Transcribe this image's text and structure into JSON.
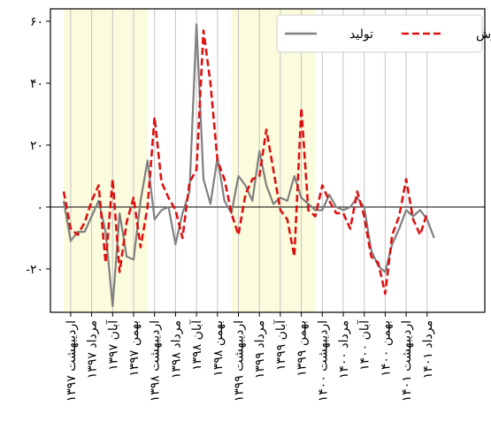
{
  "chart_data": {
    "type": "line",
    "title": "",
    "xlabel": "",
    "ylabel": "",
    "ylim": [
      -34,
      64
    ],
    "y_ticks": [
      {
        "value": 60,
        "label": "۶۰"
      },
      {
        "value": 40,
        "label": "۴۰"
      },
      {
        "value": 20,
        "label": "۲۰"
      },
      {
        "value": 0,
        "label": "۰"
      },
      {
        "value": -20,
        "label": "-۲۰"
      }
    ],
    "grid": "vertical",
    "zero_line": true,
    "legend_position": "top-right",
    "x_tick_labels": [
      "اردیبهشت ۱۳۹۷",
      "مرداد ۱۳۹۷",
      "آبان ۱۳۹۷",
      "بهمن ۱۳۹۷",
      "اردیبهشت ۱۳۹۸",
      "مرداد ۱۳۹۸",
      "آبان ۱۳۹۸",
      "بهمن ۱۳۹۸",
      "اردیبهشت ۱۳۹۹",
      "مرداد ۱۳۹۹",
      "آبان ۱۳۹۹",
      "بهمن ۱۳۹۹",
      "اردیبهشت ۱۴۰۰",
      "مرداد ۱۴۰۰",
      "آبان ۱۴۰۰",
      "بهمن ۱۴۰۰",
      "اردیبهشت ۱۴۰۱",
      "مرداد ۱۴۰۱"
    ],
    "shaded_periods": [
      {
        "from_month": 0,
        "to_month": 12,
        "color": "#fbfbdd"
      },
      {
        "from_month": 24,
        "to_month": 36,
        "color": "#fbfbdd"
      }
    ],
    "series": [
      {
        "name": "تولید",
        "color": "#808080",
        "style": "solid",
        "values": [
          2,
          -11,
          -8,
          -8,
          -3,
          2,
          -8,
          -32,
          -2,
          -16,
          -17,
          2,
          15,
          -4,
          -1,
          0,
          -12,
          -2,
          5,
          59,
          9,
          1,
          16,
          2,
          -2,
          10,
          7,
          2,
          18,
          7,
          1,
          3,
          2,
          10,
          3,
          1,
          -1,
          -1,
          4,
          0,
          -1,
          0,
          3,
          0,
          -14,
          -19,
          -21,
          -12,
          -7,
          -1,
          -3,
          -1,
          -4,
          -10
        ]
      },
      {
        "name": "فروش",
        "color": "#dd1111",
        "style": "dashed",
        "values": [
          5,
          -7,
          -9,
          -5,
          2,
          7,
          -18,
          9,
          -21,
          -5,
          3,
          -13,
          0,
          29,
          8,
          3,
          -1,
          -10,
          8,
          12,
          57,
          40,
          15,
          9,
          -2,
          -9,
          4,
          9,
          10,
          25,
          12,
          -1,
          -4,
          -16,
          32,
          -1,
          -3,
          7,
          2,
          -2,
          -2,
          -7,
          5,
          -3,
          -16,
          -18,
          -28,
          -9,
          -3,
          9,
          -4,
          -9,
          -2
        ]
      }
    ]
  }
}
